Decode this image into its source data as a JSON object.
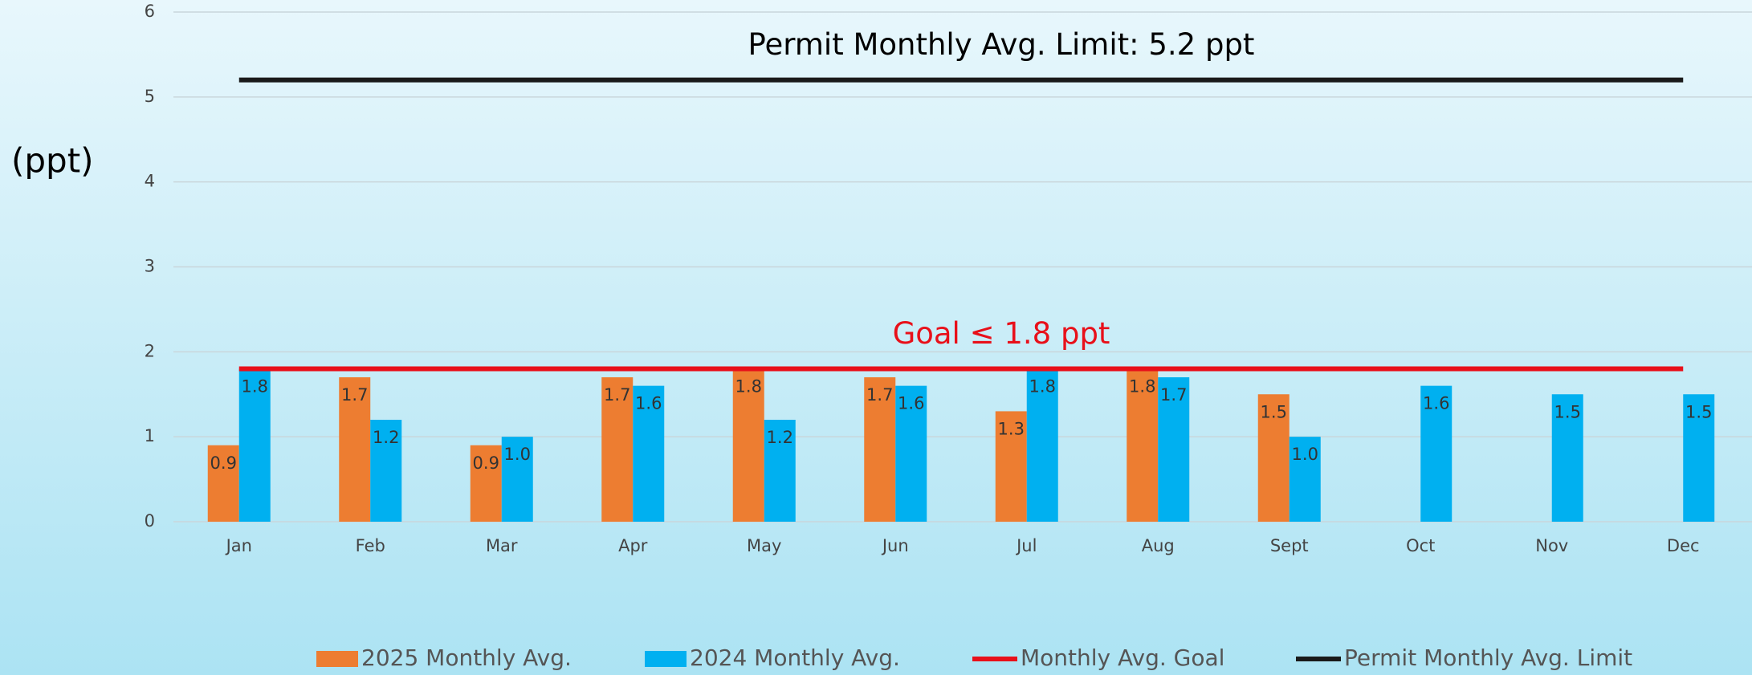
{
  "chart_data": {
    "type": "bar",
    "y_label": "(ppt)",
    "categories": [
      "Jan",
      "Feb",
      "Mar",
      "Apr",
      "May",
      "Jun",
      "Jul",
      "Aug",
      "Sept",
      "Oct",
      "Nov",
      "Dec"
    ],
    "series": [
      {
        "name": "2025 Monthly Avg.",
        "color": "#ED7D31",
        "type": "bar",
        "values": [
          0.9,
          1.7,
          0.9,
          1.7,
          1.8,
          1.7,
          1.3,
          1.8,
          1.5,
          null,
          null,
          null
        ]
      },
      {
        "name": "2024 Monthly Avg.",
        "color": "#00B0F0",
        "type": "bar",
        "values": [
          1.8,
          1.2,
          1,
          1.6,
          1.2,
          1.6,
          1.8,
          1.7,
          1,
          1.6,
          1.5,
          1.5
        ],
        "value_labels": [
          "1.8",
          "1.2",
          "1.0",
          "1.6",
          "1.2",
          "1.6",
          "1.8",
          "1.7",
          "1.0",
          "1.6",
          "1.5",
          "1.5"
        ]
      },
      {
        "name": "Monthly Avg. Goal",
        "color": "#E8101A",
        "type": "line",
        "values": [
          1.8,
          1.8,
          1.8,
          1.8,
          1.8,
          1.8,
          1.8,
          1.8,
          1.8,
          1.8,
          1.8,
          1.8
        ]
      },
      {
        "name": "Permit Monthly Avg. Limit",
        "color": "#1a1a1a",
        "type": "line",
        "values": [
          5.2,
          5.2,
          5.2,
          5.2,
          5.2,
          5.2,
          5.2,
          5.2,
          5.2,
          5.2,
          5.2,
          5.2
        ]
      }
    ],
    "annotations": [
      {
        "text": "Permit Monthly Avg. Limit:  5.2 ppt",
        "series": 3,
        "color": "#000000"
      },
      {
        "text": "Goal ≤ 1.8 ppt",
        "series": 2,
        "color": "#E8101A"
      }
    ],
    "ylim": [
      0,
      6
    ],
    "yticks": [
      0,
      1,
      2,
      3,
      4,
      5,
      6
    ],
    "grid": true,
    "legend": "bottom"
  }
}
